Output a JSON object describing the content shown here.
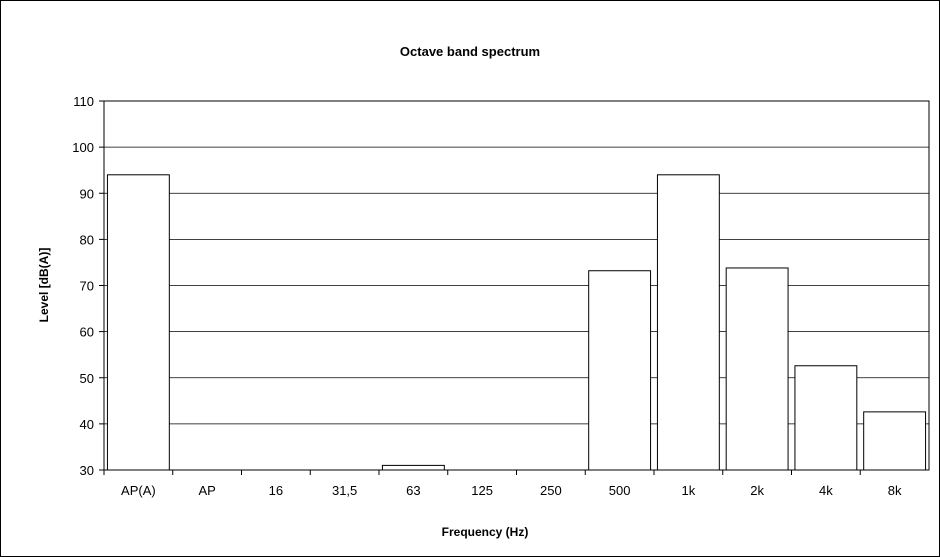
{
  "chart_data": {
    "type": "bar",
    "title": "Octave band spectrum",
    "xlabel": "Frequency (Hz)",
    "ylabel": "Level  [dB(A)]",
    "categories": [
      "AP(A)",
      "AP",
      "16",
      "31,5",
      "63",
      "125",
      "250",
      "500",
      "1k",
      "2k",
      "4k",
      "8k"
    ],
    "values": [
      94,
      30,
      30,
      30,
      31,
      30,
      30,
      73.2,
      94,
      73.8,
      52.6,
      42.6
    ],
    "ylim": [
      30,
      110
    ],
    "yticks": [
      30,
      40,
      50,
      60,
      70,
      80,
      90,
      100,
      110
    ],
    "grid": true,
    "legend": "none",
    "colors": {
      "bar_fill": "#ffffff",
      "bar_stroke": "#000000",
      "grid": "#000000"
    }
  }
}
